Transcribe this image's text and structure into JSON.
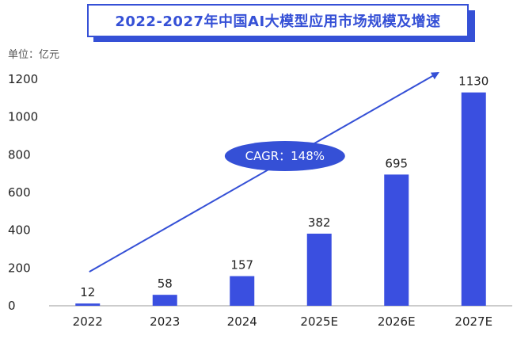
{
  "title": "2022-2027年中国AI大模型应用市场规模及增速",
  "unit_label": "单位：亿元",
  "colors": {
    "accent": "#3550d6",
    "bar": "#3a4fe0",
    "text": "#222222",
    "axis": "#999999"
  },
  "chart_data": {
    "type": "bar",
    "categories": [
      "2022",
      "2023",
      "2024",
      "2025E",
      "2026E",
      "2027E"
    ],
    "values": [
      12,
      58,
      157,
      382,
      695,
      1130
    ],
    "data_labels": [
      "12",
      "58",
      "157",
      "382",
      "695",
      "1130"
    ],
    "y_ticks": [
      "0",
      "200",
      "400",
      "600",
      "800",
      "1000",
      "1200"
    ],
    "ylim": [
      0,
      1200
    ],
    "grid": false,
    "legend": "none",
    "annotation": {
      "text": "CAGR：148%",
      "shape": "ellipse-on-trend-arrow"
    }
  }
}
